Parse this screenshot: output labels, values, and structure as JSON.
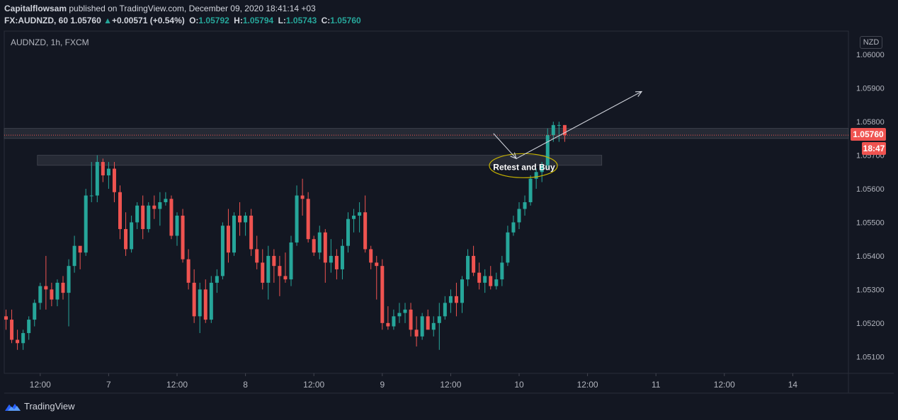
{
  "header": {
    "author": "Capitalflowsam",
    "published_text": "published on TradingView.com, December 09, 2020 18:41:14 +03",
    "symbol": "FX:AUDNZD, 60",
    "last": "1.05760",
    "change": "+0.00571 (+0.54%)",
    "o_label": "O:",
    "o_value": "1.05792",
    "h_label": "H:",
    "h_value": "1.05794",
    "l_label": "L:",
    "l_value": "1.05743",
    "c_label": "C:",
    "c_value": "1.05760"
  },
  "currency_badge": "NZD",
  "price_badge": "1.05760",
  "time_badge": "18:47",
  "footer": {
    "brand": "TradingView"
  },
  "colors": {
    "background": "#131722",
    "up": "#26a69a",
    "down": "#ef5350",
    "text": "#d1d4dc",
    "annotation": "#c8b400"
  },
  "chart_data": {
    "type": "candlestick",
    "title": "AUDNZD, 1h, FXCM",
    "ylim": [
      1.0505,
      1.0607
    ],
    "y_ticks": [
      "1.05100",
      "1.05200",
      "1.05300",
      "1.05400",
      "1.05500",
      "1.05600",
      "1.05700",
      "1.05800",
      "1.05900",
      "1.06000"
    ],
    "y_tick_values": [
      1.051,
      1.052,
      1.053,
      1.054,
      1.055,
      1.056,
      1.057,
      1.058,
      1.059,
      1.06
    ],
    "x_ticks": [
      "12:00",
      "7",
      "12:00",
      "8",
      "12:00",
      "9",
      "12:00",
      "10",
      "12:00",
      "11",
      "12:00",
      "14"
    ],
    "x_tick_index": [
      6,
      18,
      30,
      42,
      54,
      66,
      78,
      90,
      102,
      114,
      126,
      138
    ],
    "last_price": 1.0576,
    "candles": [
      [
        1.0522,
        1.0524,
        1.0518,
        1.0521
      ],
      [
        1.0521,
        1.0524,
        1.0514,
        1.0515
      ],
      [
        1.0515,
        1.0518,
        1.0512,
        1.0514
      ],
      [
        1.0514,
        1.0518,
        1.0512,
        1.0517
      ],
      [
        1.0517,
        1.0522,
        1.0515,
        1.0521
      ],
      [
        1.0521,
        1.0527,
        1.0519,
        1.0526
      ],
      [
        1.0526,
        1.0532,
        1.0524,
        1.0531
      ],
      [
        1.0531,
        1.054,
        1.0524,
        1.053
      ],
      [
        1.053,
        1.0532,
        1.0525,
        1.0527
      ],
      [
        1.0527,
        1.0533,
        1.0525,
        1.0532
      ],
      [
        1.0532,
        1.0534,
        1.0527,
        1.0529
      ],
      [
        1.0529,
        1.0539,
        1.0519,
        1.0537
      ],
      [
        1.0537,
        1.0546,
        1.0535,
        1.0543
      ],
      [
        1.0543,
        1.0542,
        1.0536,
        1.0541
      ],
      [
        1.0541,
        1.056,
        1.054,
        1.0558
      ],
      [
        1.0558,
        1.0568,
        1.0556,
        1.0558
      ],
      [
        1.0558,
        1.057,
        1.0556,
        1.0568
      ],
      [
        1.0568,
        1.0569,
        1.0562,
        1.0564
      ],
      [
        1.0564,
        1.0568,
        1.056,
        1.0566
      ],
      [
        1.0566,
        1.0568,
        1.0556,
        1.0559
      ],
      [
        1.0559,
        1.0561,
        1.0545,
        1.0548
      ],
      [
        1.0548,
        1.0553,
        1.054,
        1.0542
      ],
      [
        1.0542,
        1.0552,
        1.0541,
        1.055
      ],
      [
        1.055,
        1.0556,
        1.0548,
        1.0555
      ],
      [
        1.0555,
        1.0558,
        1.0545,
        1.0548
      ],
      [
        1.0548,
        1.0556,
        1.0547,
        1.0555
      ],
      [
        1.0555,
        1.0558,
        1.0551,
        1.0554
      ],
      [
        1.0554,
        1.0559,
        1.0549,
        1.0556
      ],
      [
        1.0556,
        1.0559,
        1.0555,
        1.0557
      ],
      [
        1.0557,
        1.0558,
        1.0545,
        1.0546
      ],
      [
        1.0546,
        1.0553,
        1.0543,
        1.0552
      ],
      [
        1.0552,
        1.0554,
        1.0538,
        1.0539
      ],
      [
        1.0539,
        1.0542,
        1.053,
        1.0532
      ],
      [
        1.0532,
        1.0536,
        1.052,
        1.0522
      ],
      [
        1.0522,
        1.0532,
        1.0517,
        1.053
      ],
      [
        1.053,
        1.0533,
        1.052,
        1.0521
      ],
      [
        1.0521,
        1.0534,
        1.052,
        1.0532
      ],
      [
        1.0532,
        1.0536,
        1.0529,
        1.0534
      ],
      [
        1.0534,
        1.055,
        1.0533,
        1.0549
      ],
      [
        1.0549,
        1.0554,
        1.0538,
        1.0541
      ],
      [
        1.0541,
        1.0553,
        1.054,
        1.0552
      ],
      [
        1.0552,
        1.0556,
        1.0546,
        1.055
      ],
      [
        1.055,
        1.0553,
        1.0546,
        1.0552
      ],
      [
        1.0552,
        1.0554,
        1.054,
        1.0542
      ],
      [
        1.0542,
        1.0546,
        1.0536,
        1.0538
      ],
      [
        1.0538,
        1.0542,
        1.053,
        1.0532
      ],
      [
        1.0532,
        1.0543,
        1.0527,
        1.054
      ],
      [
        1.054,
        1.0542,
        1.0532,
        1.0537
      ],
      [
        1.0537,
        1.054,
        1.0528,
        1.0534
      ],
      [
        1.0534,
        1.0541,
        1.0532,
        1.0533
      ],
      [
        1.0533,
        1.0546,
        1.0531,
        1.0544
      ],
      [
        1.0544,
        1.0561,
        1.0543,
        1.0558
      ],
      [
        1.0558,
        1.0563,
        1.0552,
        1.0557
      ],
      [
        1.0557,
        1.0559,
        1.0544,
        1.0545
      ],
      [
        1.0545,
        1.0546,
        1.054,
        1.0541
      ],
      [
        1.0541,
        1.0549,
        1.0539,
        1.0547
      ],
      [
        1.0547,
        1.0548,
        1.0532,
        1.0538
      ],
      [
        1.0538,
        1.0545,
        1.0535,
        1.054
      ],
      [
        1.054,
        1.0542,
        1.0533,
        1.0536
      ],
      [
        1.0536,
        1.0545,
        1.0533,
        1.0543
      ],
      [
        1.0543,
        1.0553,
        1.0541,
        1.0551
      ],
      [
        1.0551,
        1.0554,
        1.0547,
        1.0552
      ],
      [
        1.0552,
        1.0556,
        1.0547,
        1.0553
      ],
      [
        1.0553,
        1.0558,
        1.0541,
        1.0542
      ],
      [
        1.0542,
        1.0543,
        1.0536,
        1.0538
      ],
      [
        1.0538,
        1.054,
        1.0527,
        1.0537
      ],
      [
        1.0537,
        1.0539,
        1.0518,
        1.052
      ],
      [
        1.052,
        1.0525,
        1.0518,
        1.0519
      ],
      [
        1.0519,
        1.0524,
        1.0518,
        1.0522
      ],
      [
        1.0522,
        1.0526,
        1.052,
        1.0523
      ],
      [
        1.0523,
        1.0526,
        1.052,
        1.0524
      ],
      [
        1.0524,
        1.0526,
        1.0516,
        1.0518
      ],
      [
        1.0518,
        1.0522,
        1.0513,
        1.0516
      ],
      [
        1.0516,
        1.0523,
        1.0515,
        1.0522
      ],
      [
        1.0522,
        1.0524,
        1.0519,
        1.0518
      ],
      [
        1.0518,
        1.0522,
        1.0516,
        1.052
      ],
      [
        1.052,
        1.0526,
        1.0512,
        1.0522
      ],
      [
        1.0522,
        1.0528,
        1.0521,
        1.0526
      ],
      [
        1.0526,
        1.053,
        1.0523,
        1.0528
      ],
      [
        1.0528,
        1.0532,
        1.0522,
        1.0526
      ],
      [
        1.0526,
        1.0534,
        1.0523,
        1.0533
      ],
      [
        1.0533,
        1.0542,
        1.0531,
        1.054
      ],
      [
        1.054,
        1.0543,
        1.0534,
        1.0535
      ],
      [
        1.0535,
        1.0538,
        1.053,
        1.0532
      ],
      [
        1.0532,
        1.0536,
        1.0529,
        1.0534
      ],
      [
        1.0534,
        1.0537,
        1.053,
        1.0531
      ],
      [
        1.0531,
        1.0535,
        1.053,
        1.0533
      ],
      [
        1.0533,
        1.054,
        1.0531,
        1.0538
      ],
      [
        1.0538,
        1.0549,
        1.0537,
        1.0547
      ],
      [
        1.0547,
        1.0552,
        1.0546,
        1.055
      ],
      [
        1.055,
        1.0556,
        1.0548,
        1.0554
      ],
      [
        1.0554,
        1.0558,
        1.0552,
        1.0556
      ],
      [
        1.0556,
        1.0564,
        1.0555,
        1.0563
      ],
      [
        1.0563,
        1.0566,
        1.056,
        1.0565
      ],
      [
        1.0565,
        1.0568,
        1.0562,
        1.0567
      ],
      [
        1.0567,
        1.0578,
        1.0566,
        1.0576
      ],
      [
        1.0576,
        1.058,
        1.0574,
        1.0579
      ],
      [
        1.0579,
        1.058,
        1.0574,
        1.0579
      ],
      [
        1.0579,
        1.0579,
        1.0574,
        1.0576
      ]
    ],
    "zones": [
      {
        "from_index": 0,
        "to_index": 158,
        "low": 1.0575,
        "high": 1.0578
      },
      {
        "from_index": 6,
        "to_index": 104,
        "low": 1.0567,
        "high": 1.057
      }
    ],
    "annotation": {
      "text": "Retest and Buy",
      "index": 89.5,
      "price": 1.0569
    },
    "arrows": [
      {
        "from": [
          85.5,
          1.05765
        ],
        "to": [
          89.5,
          1.0569
        ]
      },
      {
        "from": [
          89.5,
          1.0569
        ],
        "to": [
          111.5,
          1.0589
        ]
      }
    ]
  }
}
